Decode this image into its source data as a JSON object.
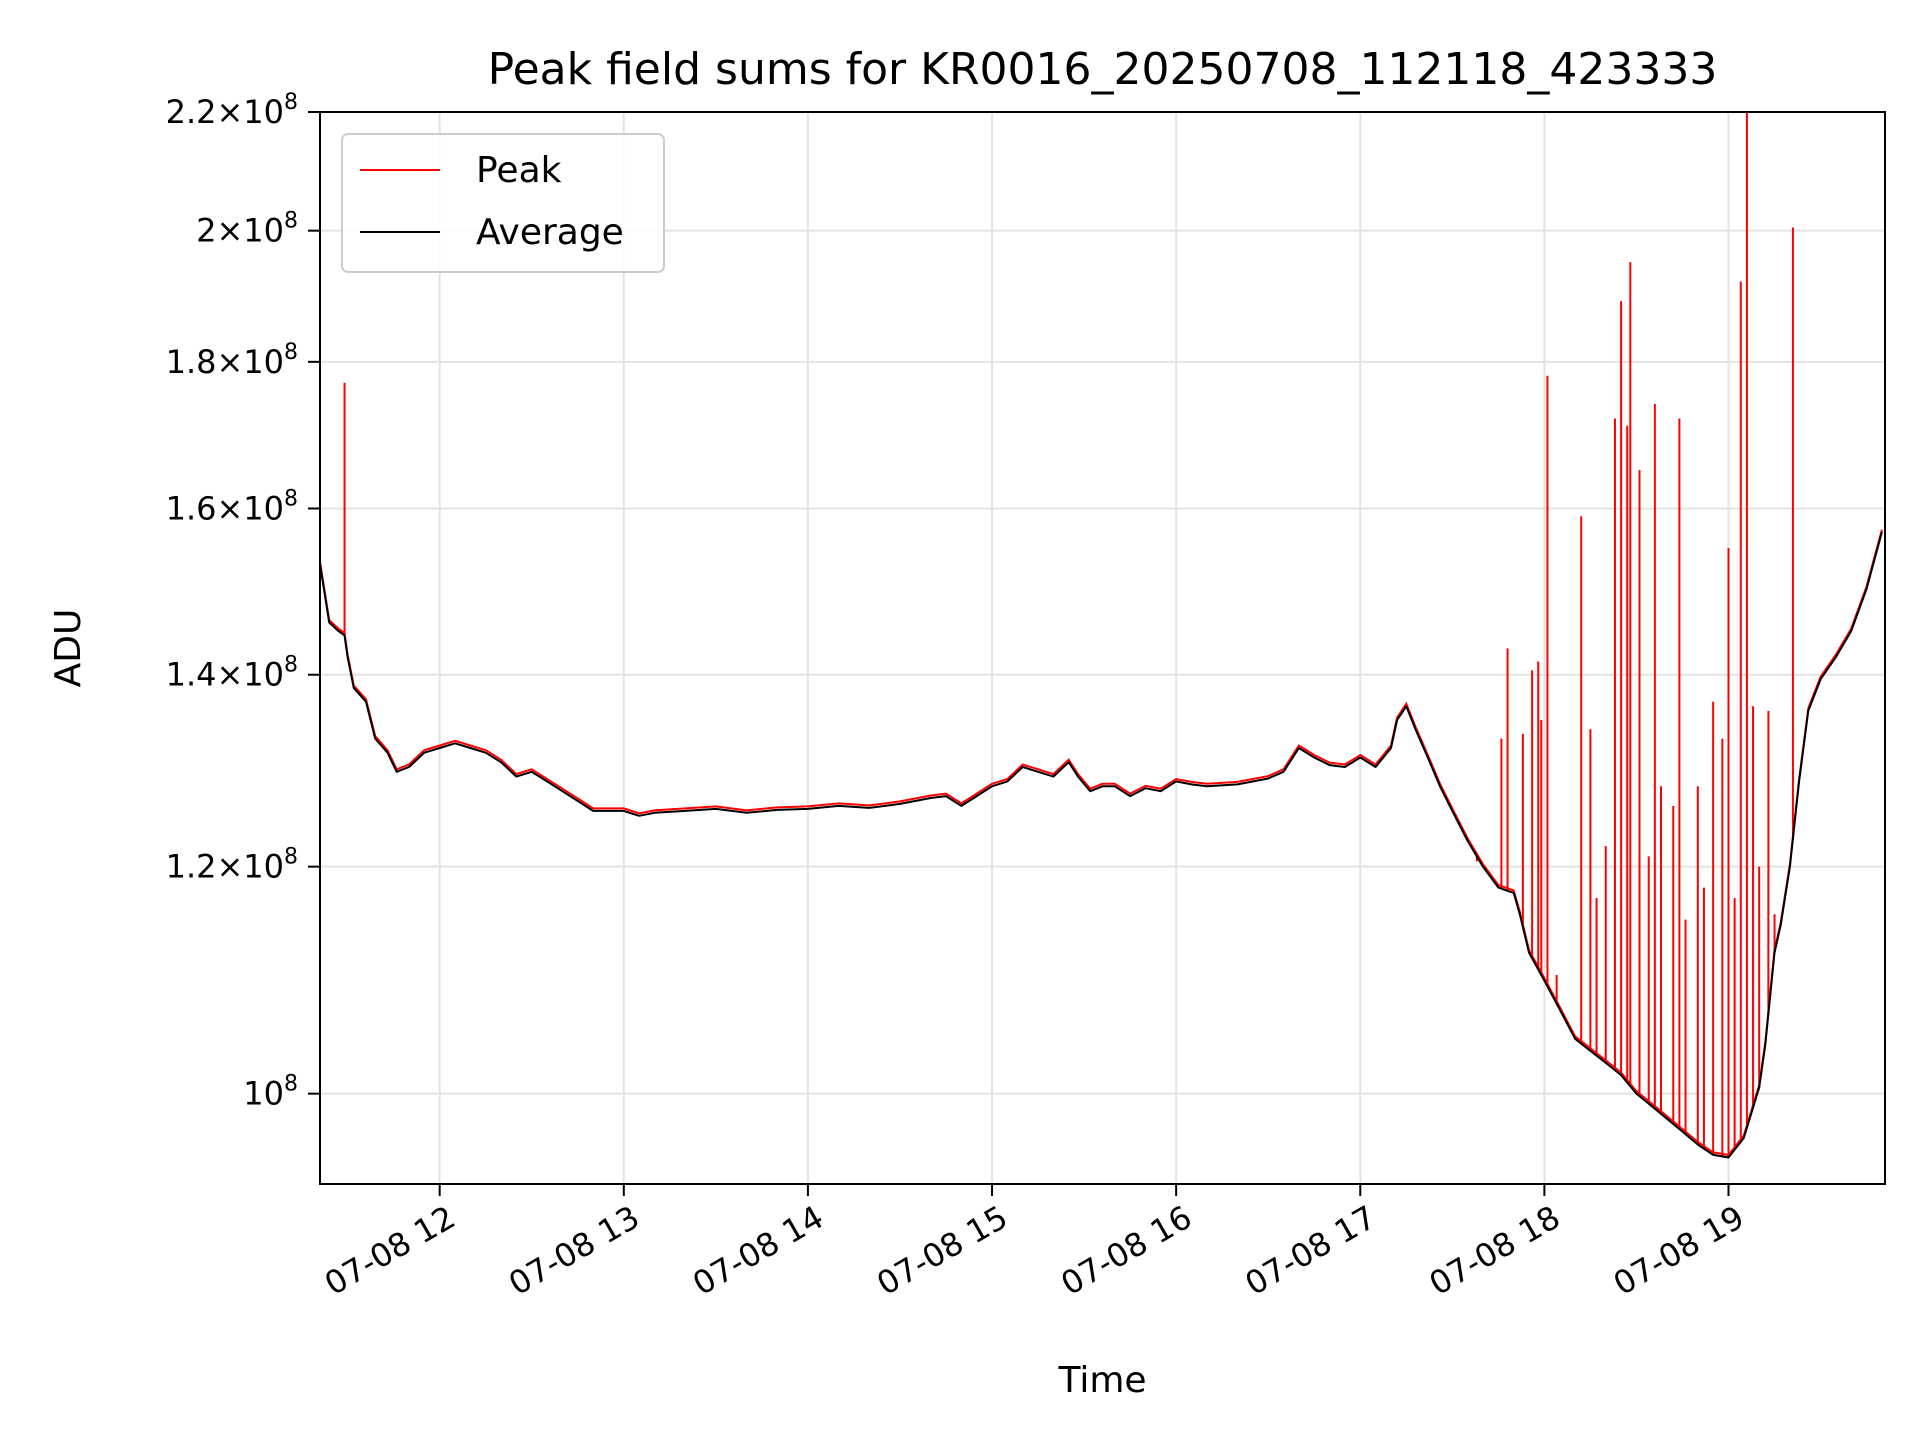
{
  "chart_data": {
    "type": "line",
    "title": "Peak field sums for KR0016_20250708_112118_423333",
    "xlabel": "Time",
    "ylabel": "ADU",
    "yscale": "log",
    "ylim": [
      93000000,
      220000000
    ],
    "xlim": [
      "2025-07-08 11:21",
      "2025-07-08 19:51"
    ],
    "grid": true,
    "legend_position": "upper left",
    "x_ticks": [
      {
        "time": "2025-07-08 12:00",
        "label": "07-08 12"
      },
      {
        "time": "2025-07-08 13:00",
        "label": "07-08 13"
      },
      {
        "time": "2025-07-08 14:00",
        "label": "07-08 14"
      },
      {
        "time": "2025-07-08 15:00",
        "label": "07-08 15"
      },
      {
        "time": "2025-07-08 16:00",
        "label": "07-08 16"
      },
      {
        "time": "2025-07-08 17:00",
        "label": "07-08 17"
      },
      {
        "time": "2025-07-08 18:00",
        "label": "07-08 18"
      },
      {
        "time": "2025-07-08 19:00",
        "label": "07-08 19"
      }
    ],
    "y_ticks": [
      {
        "value": 100000000,
        "mantissa": "",
        "exponent": "8"
      },
      {
        "value": 120000000,
        "mantissa": "1.2",
        "exponent": "8"
      },
      {
        "value": 140000000,
        "mantissa": "1.4",
        "exponent": "8"
      },
      {
        "value": 160000000,
        "mantissa": "1.6",
        "exponent": "8"
      },
      {
        "value": 180000000,
        "mantissa": "1.8",
        "exponent": "8"
      },
      {
        "value": 200000000,
        "mantissa": "2",
        "exponent": "8"
      },
      {
        "value": 220000000,
        "mantissa": "2.2",
        "exponent": "8"
      }
    ],
    "series": [
      {
        "name": "Average",
        "color": "#000000",
        "points": [
          [
            "2025-07-08 11:21",
            153000000
          ],
          [
            "2025-07-08 11:24",
            146000000
          ],
          [
            "2025-07-08 11:27",
            145000000
          ],
          [
            "2025-07-08 11:29",
            144500000
          ],
          [
            "2025-07-08 11:30",
            142000000
          ],
          [
            "2025-07-08 11:32",
            138500000
          ],
          [
            "2025-07-08 11:36",
            137000000
          ],
          [
            "2025-07-08 11:39",
            133000000
          ],
          [
            "2025-07-08 11:43",
            131500000
          ],
          [
            "2025-07-08 11:46",
            129500000
          ],
          [
            "2025-07-08 11:50",
            130000000
          ],
          [
            "2025-07-08 11:55",
            131500000
          ],
          [
            "2025-07-08 12:00",
            132000000
          ],
          [
            "2025-07-08 12:05",
            132500000
          ],
          [
            "2025-07-08 12:10",
            132000000
          ],
          [
            "2025-07-08 12:15",
            131500000
          ],
          [
            "2025-07-08 12:20",
            130500000
          ],
          [
            "2025-07-08 12:25",
            129000000
          ],
          [
            "2025-07-08 12:30",
            129500000
          ],
          [
            "2025-07-08 12:35",
            128500000
          ],
          [
            "2025-07-08 12:40",
            127500000
          ],
          [
            "2025-07-08 12:45",
            126500000
          ],
          [
            "2025-07-08 12:50",
            125500000
          ],
          [
            "2025-07-08 12:55",
            125500000
          ],
          [
            "2025-07-08 13:00",
            125500000
          ],
          [
            "2025-07-08 13:05",
            125000000
          ],
          [
            "2025-07-08 13:10",
            125300000
          ],
          [
            "2025-07-08 13:20",
            125500000
          ],
          [
            "2025-07-08 13:30",
            125700000
          ],
          [
            "2025-07-08 13:40",
            125300000
          ],
          [
            "2025-07-08 13:50",
            125600000
          ],
          [
            "2025-07-08 14:00",
            125700000
          ],
          [
            "2025-07-08 14:10",
            126000000
          ],
          [
            "2025-07-08 14:20",
            125800000
          ],
          [
            "2025-07-08 14:30",
            126200000
          ],
          [
            "2025-07-08 14:40",
            126800000
          ],
          [
            "2025-07-08 14:45",
            127000000
          ],
          [
            "2025-07-08 14:50",
            126000000
          ],
          [
            "2025-07-08 14:55",
            127000000
          ],
          [
            "2025-07-08 15:00",
            128000000
          ],
          [
            "2025-07-08 15:05",
            128500000
          ],
          [
            "2025-07-08 15:10",
            130000000
          ],
          [
            "2025-07-08 15:15",
            129500000
          ],
          [
            "2025-07-08 15:20",
            129000000
          ],
          [
            "2025-07-08 15:25",
            130500000
          ],
          [
            "2025-07-08 15:28",
            129000000
          ],
          [
            "2025-07-08 15:32",
            127500000
          ],
          [
            "2025-07-08 15:36",
            128000000
          ],
          [
            "2025-07-08 15:40",
            128000000
          ],
          [
            "2025-07-08 15:45",
            127000000
          ],
          [
            "2025-07-08 15:50",
            127800000
          ],
          [
            "2025-07-08 15:55",
            127500000
          ],
          [
            "2025-07-08 16:00",
            128500000
          ],
          [
            "2025-07-08 16:05",
            128200000
          ],
          [
            "2025-07-08 16:10",
            128000000
          ],
          [
            "2025-07-08 16:20",
            128200000
          ],
          [
            "2025-07-08 16:30",
            128800000
          ],
          [
            "2025-07-08 16:35",
            129500000
          ],
          [
            "2025-07-08 16:40",
            132000000
          ],
          [
            "2025-07-08 16:45",
            131000000
          ],
          [
            "2025-07-08 16:50",
            130200000
          ],
          [
            "2025-07-08 16:55",
            130000000
          ],
          [
            "2025-07-08 17:00",
            131000000
          ],
          [
            "2025-07-08 17:05",
            130000000
          ],
          [
            "2025-07-08 17:10",
            132000000
          ],
          [
            "2025-07-08 17:12",
            135000000
          ],
          [
            "2025-07-08 17:15",
            136500000
          ],
          [
            "2025-07-08 17:18",
            134000000
          ],
          [
            "2025-07-08 17:22",
            131000000
          ],
          [
            "2025-07-08 17:26",
            128000000
          ],
          [
            "2025-07-08 17:30",
            125500000
          ],
          [
            "2025-07-08 17:35",
            122500000
          ],
          [
            "2025-07-08 17:40",
            120000000
          ],
          [
            "2025-07-08 17:45",
            118000000
          ],
          [
            "2025-07-08 17:50",
            117500000
          ],
          [
            "2025-07-08 17:52",
            115500000
          ],
          [
            "2025-07-08 17:55",
            112000000
          ],
          [
            "2025-07-08 18:00",
            109500000
          ],
          [
            "2025-07-08 18:05",
            107000000
          ],
          [
            "2025-07-08 18:10",
            104500000
          ],
          [
            "2025-07-08 18:15",
            103500000
          ],
          [
            "2025-07-08 18:20",
            102500000
          ],
          [
            "2025-07-08 18:25",
            101500000
          ],
          [
            "2025-07-08 18:30",
            100000000
          ],
          [
            "2025-07-08 18:35",
            99000000
          ],
          [
            "2025-07-08 18:40",
            98000000
          ],
          [
            "2025-07-08 18:45",
            97000000
          ],
          [
            "2025-07-08 18:50",
            96000000
          ],
          [
            "2025-07-08 18:55",
            95200000
          ],
          [
            "2025-07-08 19:00",
            95000000
          ],
          [
            "2025-07-08 19:05",
            96500000
          ],
          [
            "2025-07-08 19:10",
            100500000
          ],
          [
            "2025-07-08 19:12",
            104000000
          ],
          [
            "2025-07-08 19:15",
            112000000
          ],
          [
            "2025-07-08 19:17",
            114500000
          ],
          [
            "2025-07-08 19:20",
            120000000
          ],
          [
            "2025-07-08 19:23",
            128500000
          ],
          [
            "2025-07-08 19:26",
            136000000
          ],
          [
            "2025-07-08 19:30",
            139500000
          ],
          [
            "2025-07-08 19:35",
            142000000
          ],
          [
            "2025-07-08 19:40",
            145000000
          ],
          [
            "2025-07-08 19:45",
            150000000
          ],
          [
            "2025-07-08 19:50",
            157000000
          ]
        ]
      },
      {
        "name": "Peak",
        "color": "#ff0000",
        "spikes": [
          [
            "2025-07-08 11:29",
            177000000
          ],
          [
            "2025-07-08 17:38",
            120500000
          ],
          [
            "2025-07-08 17:46",
            133000000
          ],
          [
            "2025-07-08 17:48",
            143000000
          ],
          [
            "2025-07-08 17:53",
            133500000
          ],
          [
            "2025-07-08 17:56",
            140500000
          ],
          [
            "2025-07-08 17:58",
            141500000
          ],
          [
            "2025-07-08 17:59",
            135000000
          ],
          [
            "2025-07-08 18:01",
            178000000
          ],
          [
            "2025-07-08 18:04",
            110000000
          ],
          [
            "2025-07-08 18:12",
            159000000
          ],
          [
            "2025-07-08 18:15",
            134000000
          ],
          [
            "2025-07-08 18:17",
            117000000
          ],
          [
            "2025-07-08 18:20",
            122000000
          ],
          [
            "2025-07-08 18:23",
            172000000
          ],
          [
            "2025-07-08 18:25",
            189000000
          ],
          [
            "2025-07-08 18:27",
            171000000
          ],
          [
            "2025-07-08 18:28",
            195000000
          ],
          [
            "2025-07-08 18:31",
            165000000
          ],
          [
            "2025-07-08 18:34",
            121000000
          ],
          [
            "2025-07-08 18:36",
            174000000
          ],
          [
            "2025-07-08 18:38",
            128000000
          ],
          [
            "2025-07-08 18:42",
            126000000
          ],
          [
            "2025-07-08 18:44",
            172000000
          ],
          [
            "2025-07-08 18:46",
            115000000
          ],
          [
            "2025-07-08 18:50",
            128000000
          ],
          [
            "2025-07-08 18:52",
            118000000
          ],
          [
            "2025-07-08 18:55",
            137000000
          ],
          [
            "2025-07-08 18:58",
            133000000
          ],
          [
            "2025-07-08 19:00",
            155000000
          ],
          [
            "2025-07-08 19:02",
            117000000
          ],
          [
            "2025-07-08 19:04",
            192000000
          ],
          [
            "2025-07-08 19:06",
            220000000
          ],
          [
            "2025-07-08 19:08",
            136500000
          ],
          [
            "2025-07-08 19:10",
            120000000
          ],
          [
            "2025-07-08 19:13",
            136000000
          ],
          [
            "2025-07-08 19:15",
            115500000
          ],
          [
            "2025-07-08 19:21",
            200500000
          ]
        ]
      }
    ]
  }
}
